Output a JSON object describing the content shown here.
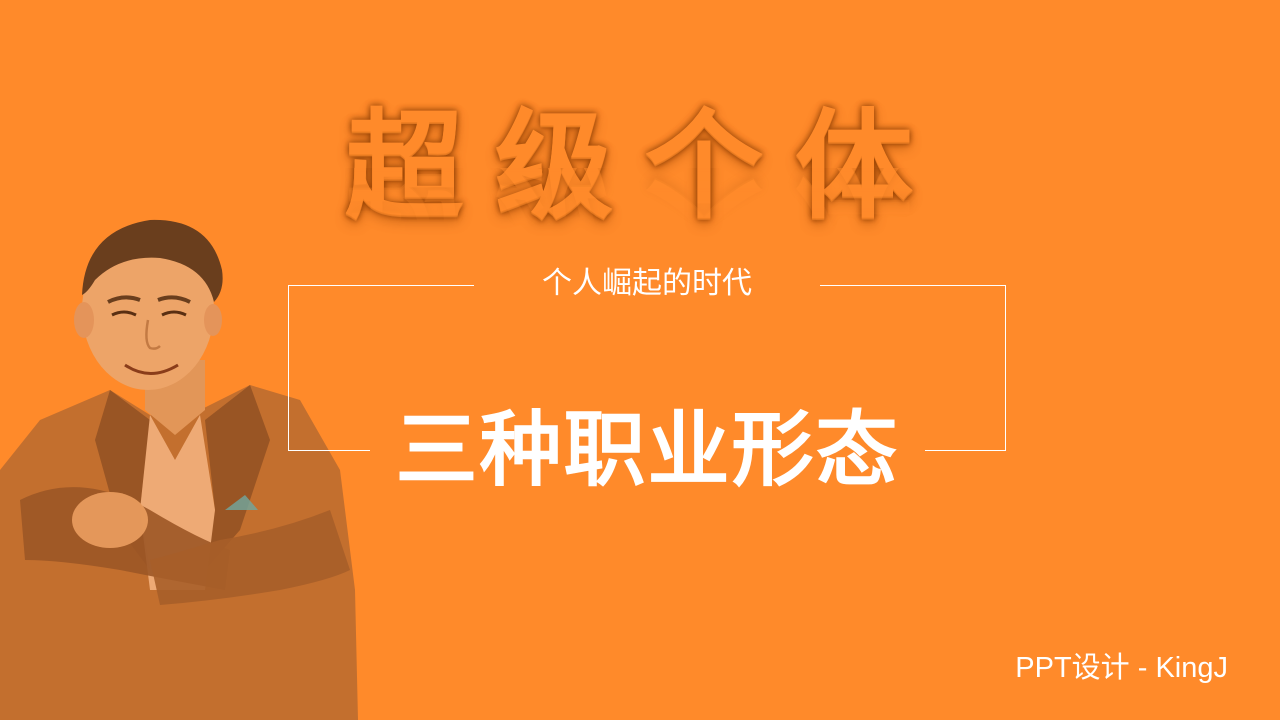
{
  "slide": {
    "background_color": "#ff8a2a",
    "big_title": "超级个体",
    "subtitle": "个人崛起的时代",
    "main_title": "三种职业形态",
    "credit": "PPT设计 - KingJ"
  }
}
